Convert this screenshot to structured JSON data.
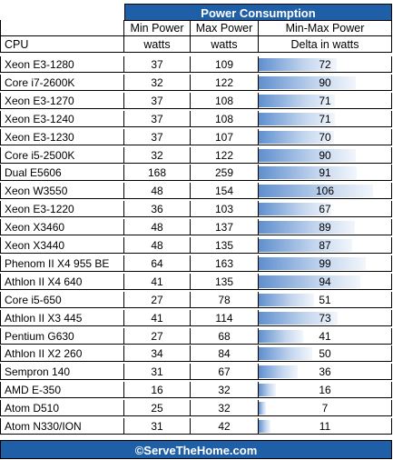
{
  "title": "Power Consumption",
  "headers": {
    "row1": [
      "",
      "Min Power",
      "Max Power",
      "Min-Max Power"
    ],
    "row2": [
      "CPU",
      "watts",
      "watts",
      "Delta in watts"
    ]
  },
  "footer": "©ServeTheHome.com",
  "colors": {
    "header_blue": "#1f5fa8",
    "bar_blue": "#5f8fcf"
  },
  "chart_data": {
    "type": "table",
    "title": "Power Consumption",
    "columns": [
      "CPU",
      "Min Power watts",
      "Max Power watts",
      "Min-Max Power Delta in watts"
    ],
    "delta_max": 106,
    "rows": [
      {
        "cpu": "Xeon E3-1280",
        "min": 37,
        "max": 109,
        "delta": 72
      },
      {
        "cpu": "Core i7-2600K",
        "min": 32,
        "max": 122,
        "delta": 90
      },
      {
        "cpu": "Xeon E3-1270",
        "min": 37,
        "max": 108,
        "delta": 71
      },
      {
        "cpu": "Xeon E3-1240",
        "min": 37,
        "max": 108,
        "delta": 71
      },
      {
        "cpu": "Xeon E3-1230",
        "min": 37,
        "max": 107,
        "delta": 70
      },
      {
        "cpu": "Core i5-2500K",
        "min": 32,
        "max": 122,
        "delta": 90
      },
      {
        "cpu": "Dual E5606",
        "min": 168,
        "max": 259,
        "delta": 91
      },
      {
        "cpu": "Xeon W3550",
        "min": 48,
        "max": 154,
        "delta": 106
      },
      {
        "cpu": "Xeon E3-1220",
        "min": 36,
        "max": 103,
        "delta": 67
      },
      {
        "cpu": "Xeon X3460",
        "min": 48,
        "max": 137,
        "delta": 89
      },
      {
        "cpu": "Xeon X3440",
        "min": 48,
        "max": 135,
        "delta": 87
      },
      {
        "cpu": "Phenom II X4 955 BE",
        "min": 64,
        "max": 163,
        "delta": 99
      },
      {
        "cpu": "Athlon II X4 640",
        "min": 41,
        "max": 135,
        "delta": 94
      },
      {
        "cpu": "Core i5-650",
        "min": 27,
        "max": 78,
        "delta": 51
      },
      {
        "cpu": "Athlon II X3 445",
        "min": 41,
        "max": 114,
        "delta": 73
      },
      {
        "cpu": "Pentium G630",
        "min": 27,
        "max": 68,
        "delta": 41
      },
      {
        "cpu": "Athlon II X2 260",
        "min": 34,
        "max": 84,
        "delta": 50
      },
      {
        "cpu": "Sempron 140",
        "min": 31,
        "max": 67,
        "delta": 36
      },
      {
        "cpu": "AMD E-350",
        "min": 16,
        "max": 32,
        "delta": 16
      },
      {
        "cpu": "Atom D510",
        "min": 25,
        "max": 32,
        "delta": 7
      },
      {
        "cpu": "Atom N330/ION",
        "min": 31,
        "max": 42,
        "delta": 11
      }
    ]
  }
}
